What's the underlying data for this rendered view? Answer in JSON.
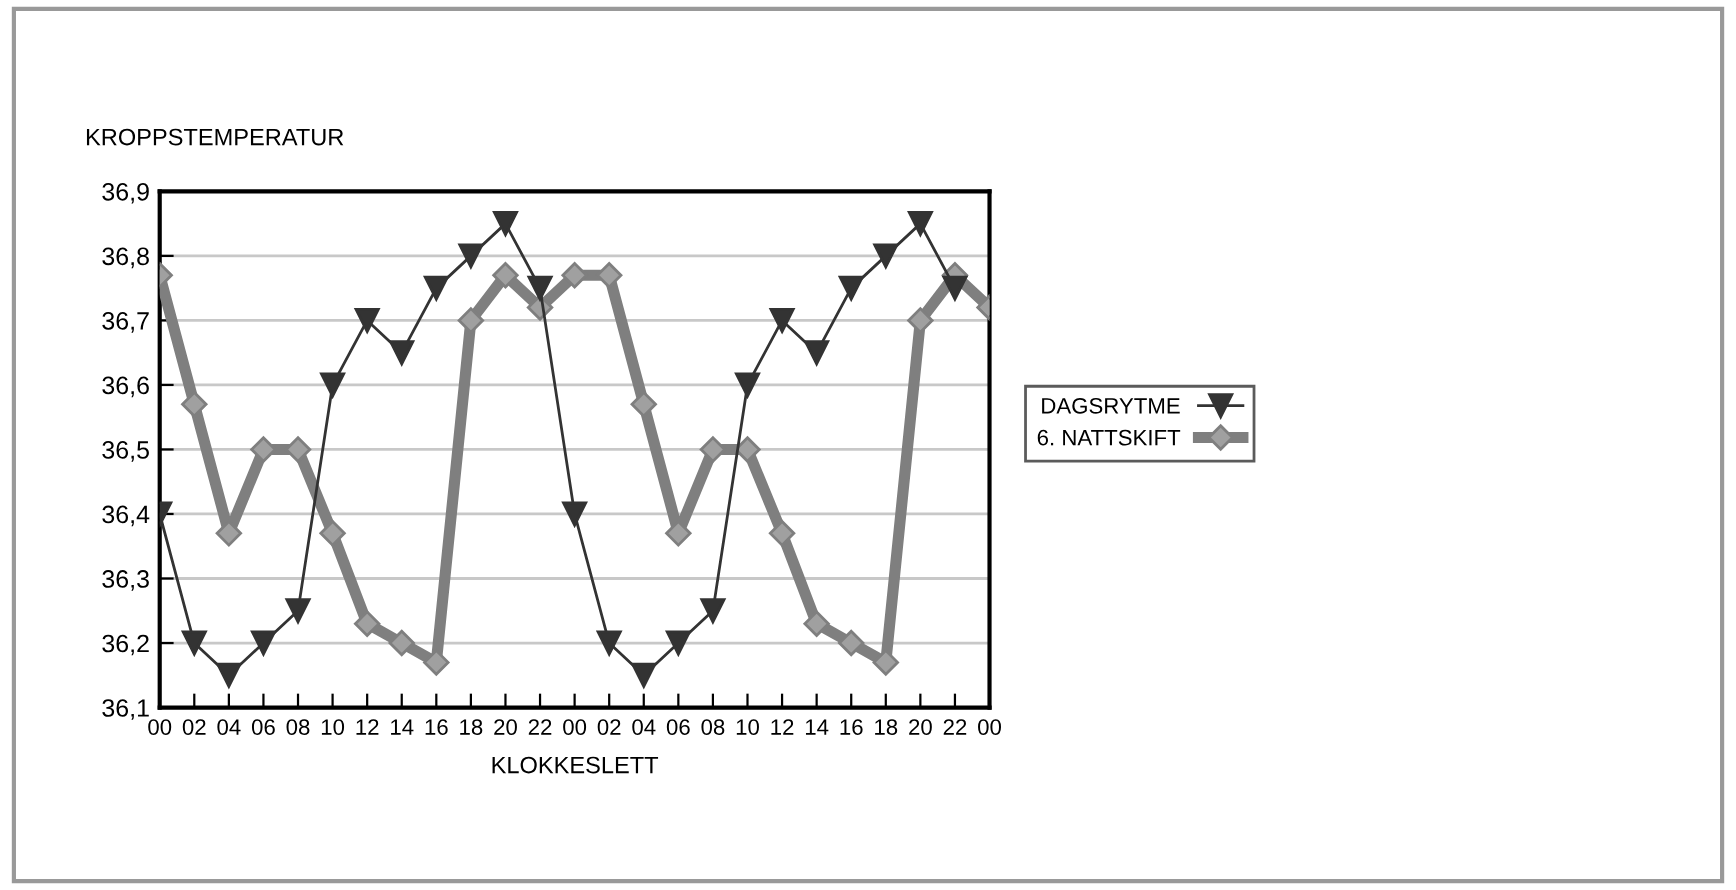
{
  "chart_data": {
    "type": "line",
    "ylabel": "KROPPSTEMPERATUR",
    "xlabel": "KLOKKESLETT",
    "x": [
      0,
      2,
      4,
      6,
      8,
      10,
      12,
      14,
      16,
      18,
      20,
      22,
      24,
      26,
      28,
      30,
      32,
      34,
      36,
      38,
      40,
      42,
      44,
      46,
      48
    ],
    "series": [
      {
        "name": "DAGSRYTME",
        "color": "#333333",
        "marker": "triangle",
        "values": [
          36.4,
          36.2,
          36.15,
          36.2,
          36.25,
          36.6,
          36.7,
          36.65,
          36.75,
          36.8,
          36.85,
          36.75,
          36.4,
          36.2,
          36.15,
          36.2,
          36.25,
          36.6,
          36.7,
          36.65,
          36.75,
          36.8,
          36.85,
          36.75,
          null
        ]
      },
      {
        "name": "6. NATTSKIFT",
        "color": "#7f7f7f",
        "marker": "diamond",
        "values": [
          36.77,
          36.57,
          36.37,
          36.5,
          36.5,
          36.37,
          36.23,
          36.2,
          36.17,
          36.7,
          36.77,
          36.72,
          36.77,
          36.77,
          36.57,
          36.37,
          36.5,
          36.5,
          36.37,
          36.23,
          36.2,
          36.17,
          36.7,
          36.77,
          36.72
        ]
      }
    ],
    "xlim": [
      0,
      48
    ],
    "xticks": [
      {
        "value": 0,
        "label": "00"
      },
      {
        "value": 2,
        "label": "02"
      },
      {
        "value": 4,
        "label": "04"
      },
      {
        "value": 6,
        "label": "06"
      },
      {
        "value": 8,
        "label": "08"
      },
      {
        "value": 10,
        "label": "10"
      },
      {
        "value": 12,
        "label": "12"
      },
      {
        "value": 14,
        "label": "14"
      },
      {
        "value": 16,
        "label": "16"
      },
      {
        "value": 18,
        "label": "18"
      },
      {
        "value": 20,
        "label": "20"
      },
      {
        "value": 22,
        "label": "22"
      },
      {
        "value": 24,
        "label": "00"
      },
      {
        "value": 26,
        "label": "02"
      },
      {
        "value": 28,
        "label": "04"
      },
      {
        "value": 30,
        "label": "06"
      },
      {
        "value": 32,
        "label": "08"
      },
      {
        "value": 34,
        "label": "10"
      },
      {
        "value": 36,
        "label": "12"
      },
      {
        "value": 38,
        "label": "14"
      },
      {
        "value": 40,
        "label": "16"
      },
      {
        "value": 42,
        "label": "18"
      },
      {
        "value": 44,
        "label": "20"
      },
      {
        "value": 46,
        "label": "22"
      },
      {
        "value": 48,
        "label": "00"
      }
    ],
    "ylim": [
      36.1,
      36.9
    ],
    "yticks": [
      {
        "value": 36.1,
        "label": "36,1"
      },
      {
        "value": 36.2,
        "label": "36,2"
      },
      {
        "value": 36.3,
        "label": "36,3"
      },
      {
        "value": 36.4,
        "label": "36,4"
      },
      {
        "value": 36.5,
        "label": "36,5"
      },
      {
        "value": 36.6,
        "label": "36,6"
      },
      {
        "value": 36.7,
        "label": "36,7"
      },
      {
        "value": 36.8,
        "label": "36,8"
      },
      {
        "value": 36.9,
        "label": "36,9"
      }
    ],
    "grid": "y",
    "legend": "right",
    "line_style": "solid"
  }
}
